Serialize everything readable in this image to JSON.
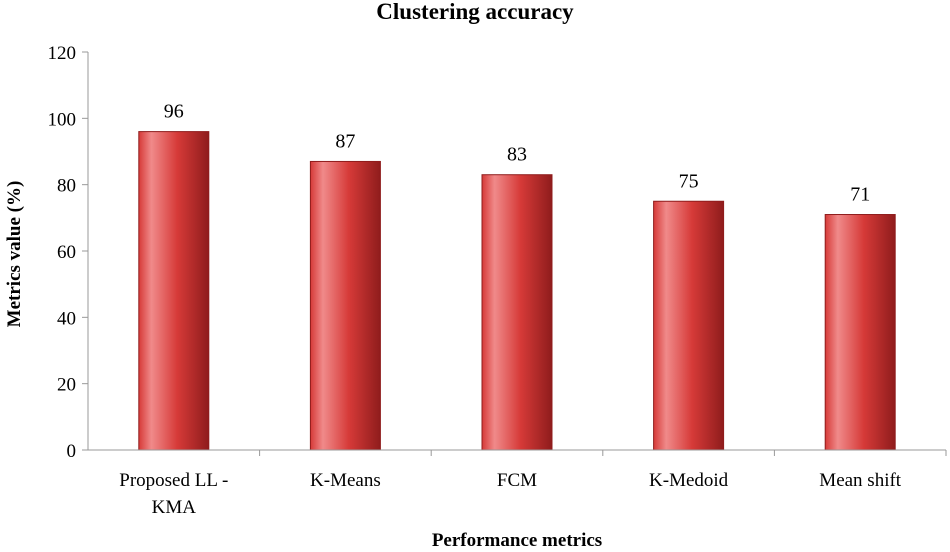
{
  "chart_data": {
    "type": "bar",
    "title": "Clustering accuracy",
    "xlabel": "Performance  metrics",
    "ylabel": "Metrics value (%)",
    "categories": [
      [
        "Proposed LL -",
        "KMA"
      ],
      [
        "K-Means"
      ],
      [
        "FCM"
      ],
      [
        "K-Medoid"
      ],
      [
        "Mean shift"
      ]
    ],
    "values": [
      96,
      87,
      83,
      75,
      71
    ],
    "ylim": [
      0,
      120
    ],
    "yticks": [
      0,
      20,
      40,
      60,
      80,
      100,
      120
    ],
    "grid": false,
    "legend": "none",
    "colors": {
      "bar_top": "#f08a8a",
      "bar_mid": "#d63a38",
      "bar_dark": "#8f1c1c",
      "axis": "#999999"
    }
  }
}
